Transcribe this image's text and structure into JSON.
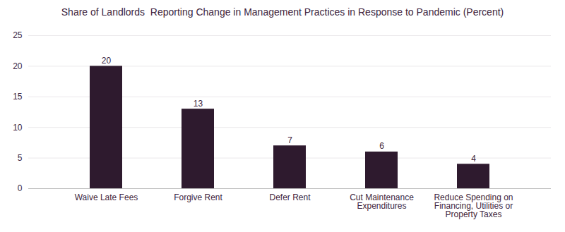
{
  "chart_data": {
    "type": "bar",
    "title": "Share of Landlords  Reporting Change in Management Practices in Response to Pandemic (Percent)",
    "categories": [
      "Waive Late Fees",
      "Forgive Rent",
      "Defer Rent",
      "Cut Maintenance\nExpenditures",
      "Reduce Spending on\nFinancing, Utilities or\nProperty Taxes"
    ],
    "values": [
      20,
      13,
      7,
      6,
      4
    ],
    "color": "#2e1a2e",
    "ylim": [
      0,
      25
    ],
    "yticks": [
      0,
      5,
      10,
      15,
      20,
      25
    ],
    "grid": true,
    "data_labels": true
  }
}
